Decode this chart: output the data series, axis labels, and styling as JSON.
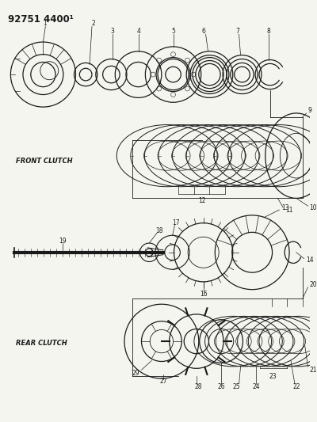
{
  "title": "92751 4400¹",
  "bg_color": "#f5f5f0",
  "fg_color": "#1a1a1a",
  "lw": 0.9,
  "fs_label": 6.0,
  "fs_num": 5.5,
  "layout": {
    "figw": 4.0,
    "figh": 5.33,
    "dpi": 100
  }
}
